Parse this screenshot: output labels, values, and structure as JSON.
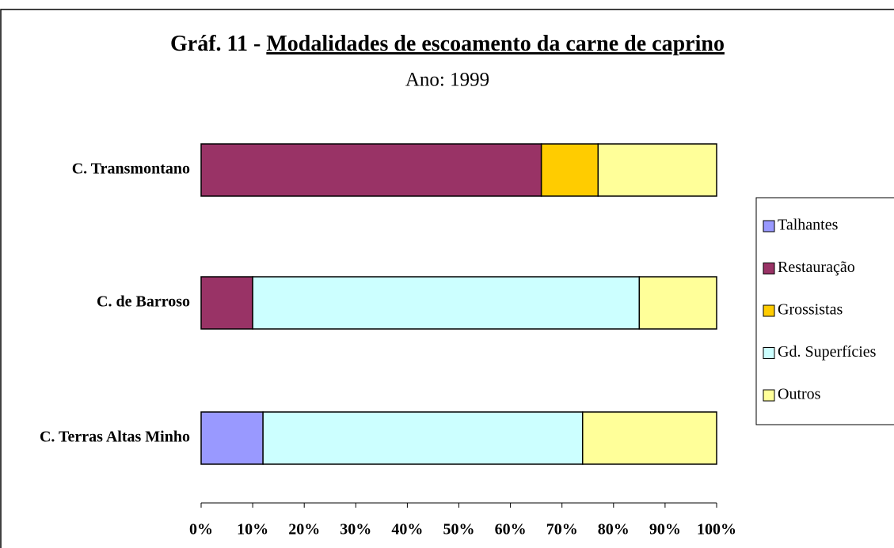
{
  "chart_data": {
    "type": "stacked_bar_horizontal",
    "title_number": "Gráf. 11 -",
    "title": "Modalidades de escoamento da carne de caprino",
    "subtitle": "Ano: 1999",
    "categories": [
      "C. Transmontano",
      "C. de Barroso",
      "C. Terras Altas Minho"
    ],
    "series": [
      {
        "name": "Talhantes",
        "color": "#9999ff",
        "values": [
          0,
          0,
          12
        ]
      },
      {
        "name": "Restauração",
        "color": "#993366",
        "values": [
          66,
          10,
          0
        ]
      },
      {
        "name": "Grossistas",
        "color": "#ffcc00",
        "values": [
          11,
          0,
          0
        ]
      },
      {
        "name": "Gd. Superfícies",
        "color": "#ccffff",
        "values": [
          0,
          75,
          62
        ]
      },
      {
        "name": "Outros",
        "color": "#ffff99",
        "values": [
          23,
          15,
          26
        ]
      }
    ],
    "xlim": [
      0,
      100
    ],
    "xticks": [
      {
        "value": 0,
        "label": "0%"
      },
      {
        "value": 10,
        "label": "10%"
      },
      {
        "value": 20,
        "label": "20%"
      },
      {
        "value": 30,
        "label": "30%"
      },
      {
        "value": 40,
        "label": "40%"
      },
      {
        "value": 50,
        "label": "50%"
      },
      {
        "value": 60,
        "label": "60%"
      },
      {
        "value": 70,
        "label": "70%"
      },
      {
        "value": 80,
        "label": "80%"
      },
      {
        "value": 90,
        "label": "90%"
      },
      {
        "value": 100,
        "label": "100%"
      }
    ],
    "legend": "right"
  }
}
